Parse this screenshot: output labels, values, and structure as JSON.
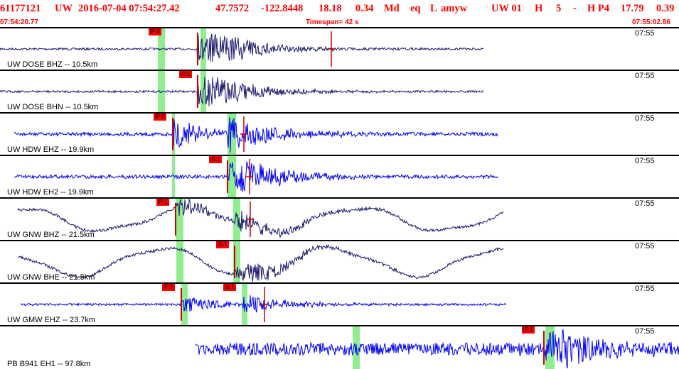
{
  "header": {
    "event_id": "61177121",
    "network": "UW",
    "origin": "2016-07-04 07:54:27.42",
    "lat": "47.7572",
    "lon": "-122.8448",
    "depth": "18.18",
    "mag": "0.34",
    "mag_type": "Md",
    "etype": "eq",
    "flag": "L",
    "auth": "amyw",
    "subsource": "UW 01",
    "gtype": "H",
    "num": "5",
    "dash": "-",
    "quality": "H P4",
    "dist": "17.79",
    "rms": "0.39"
  },
  "timebar": {
    "start": "07:54:20.77",
    "timespan": "Timespan=  42 s",
    "end": "07:55:02.86"
  },
  "colors": {
    "title": "#ff0000",
    "trace_broadband": "#1a1a6e",
    "trace_short": "#0000ff",
    "pick_tag": "#ff0000",
    "pick_window": "#90ee90",
    "marker": "#cc0000"
  },
  "panels": [
    {
      "time": "07:55",
      "label": "UW DOSE BHZ -- 10.5km",
      "pick": "iP:0",
      "trace": "bb"
    },
    {
      "time": "07:55",
      "label": "UW DOSE BHN -- 10.5km",
      "pick": "iS:1",
      "trace": "bb"
    },
    {
      "time": "07:55",
      "label": "UW HDW EHZ -- 19.9km",
      "pick": "iP:0",
      "trace": "sp"
    },
    {
      "time": "07:55",
      "label": "UW HDW EH2 -- 19.9km",
      "pick": "iS:1",
      "trace": "sp"
    },
    {
      "time": "07:55",
      "label": "UW GNW BHZ -- 21.5km",
      "pick": "iP:1",
      "trace": "bb"
    },
    {
      "time": "07:55",
      "label": "UW GNW BHE -- 21.5km",
      "pick": "iS:1",
      "trace": "bb"
    },
    {
      "time": "07:55",
      "label": "UW GMW EHZ -- 23.7km",
      "pick": "iP:0",
      "pick2": "iS:1",
      "trace": "sp"
    },
    {
      "time": "07:55",
      "label": "PB B941 EH1 -- 97.8km",
      "pick": "iS:1",
      "trace": "sp"
    }
  ]
}
